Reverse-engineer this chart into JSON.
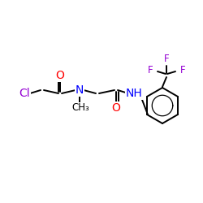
{
  "bg_color": "#ffffff",
  "bond_color": "#000000",
  "atom_colors": {
    "Cl": "#9400D3",
    "O": "#ff0000",
    "N": "#0000ff",
    "F": "#9400D3",
    "C": "#000000"
  },
  "figsize": [
    2.5,
    2.5
  ],
  "dpi": 100,
  "lw": 1.4,
  "fs": 10,
  "fs_small": 8.5
}
